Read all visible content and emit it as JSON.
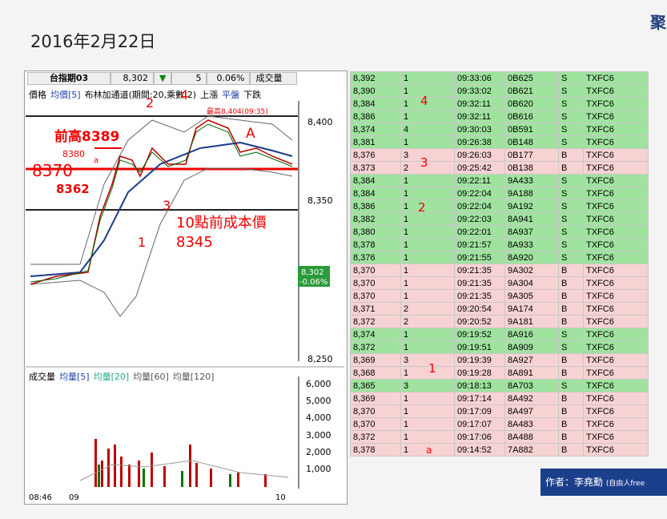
{
  "header": {
    "date": "2016年2月22日",
    "logo": "聚"
  },
  "quote_bar": [
    "台指期03",
    "8,302",
    "▼",
    "5",
    "0.06%",
    "成交量"
  ],
  "price_legend": [
    "價格",
    "均價[5]",
    "布林加通道(期間:20,乘數:2)",
    "上漲",
    "平盤",
    "下跌"
  ],
  "price_axis": [
    "8,400",
    "8,350",
    "8,250"
  ],
  "last_price": {
    "price": "8,302",
    "change": "-0.06%"
  },
  "annotations": {
    "prev_high": "前高8389",
    "level_8380": "8380",
    "mark_a": "a",
    "level_8370": "8370",
    "level_8362": "8362",
    "n1": "1",
    "n2": "2",
    "n3": "3",
    "n4": "4",
    "mark_A": "A",
    "high": "最高8,404(09:35)",
    "cost_label": "10點前成本價",
    "cost_value": "8345"
  },
  "volume_legend": [
    "成交量",
    "均量[5]",
    "均量[20]",
    "均量[60]",
    "均量[120]"
  ],
  "volume_axis": [
    "6,000",
    "5,000",
    "4,000",
    "3,000",
    "2,000",
    "1,000"
  ],
  "time_axis": [
    "08:46",
    "09",
    "10"
  ],
  "table": {
    "rows": [
      [
        "8,392",
        "1",
        "09:33:06",
        "0B625",
        "S",
        "TXFC6"
      ],
      [
        "8,390",
        "1",
        "09:33:02",
        "0B621",
        "S",
        "TXFC6"
      ],
      [
        "8,384",
        "1",
        "09:32:11",
        "0B620",
        "S",
        "TXFC6"
      ],
      [
        "8,386",
        "1",
        "09:32:11",
        "0B616",
        "S",
        "TXFC6"
      ],
      [
        "8,374",
        "4",
        "09:30:03",
        "0B591",
        "S",
        "TXFC6"
      ],
      [
        "8,381",
        "1",
        "09:26:38",
        "0B148",
        "S",
        "TXFC6"
      ],
      [
        "8,376",
        "3",
        "09:26:03",
        "0B177",
        "B",
        "TXFC6"
      ],
      [
        "8,373",
        "2",
        "09:25:42",
        "0B138",
        "B",
        "TXFC6"
      ],
      [
        "8,384",
        "1",
        "09:22:11",
        "9A433",
        "S",
        "TXFC6"
      ],
      [
        "8,384",
        "1",
        "09:22:04",
        "9A188",
        "S",
        "TXFC6"
      ],
      [
        "8,386",
        "1",
        "09:22:04",
        "9A192",
        "S",
        "TXFC6"
      ],
      [
        "8,382",
        "1",
        "09:22:03",
        "8A941",
        "S",
        "TXFC6"
      ],
      [
        "8,380",
        "1",
        "09:22:01",
        "8A937",
        "S",
        "TXFC6"
      ],
      [
        "8,378",
        "1",
        "09:21:57",
        "8A933",
        "S",
        "TXFC6"
      ],
      [
        "8,376",
        "1",
        "09:21:55",
        "8A920",
        "S",
        "TXFC6"
      ],
      [
        "8,370",
        "1",
        "09:21:35",
        "9A302",
        "B",
        "TXFC6"
      ],
      [
        "8,370",
        "1",
        "09:21:35",
        "9A304",
        "B",
        "TXFC6"
      ],
      [
        "8,370",
        "1",
        "09:21:35",
        "9A305",
        "B",
        "TXFC6"
      ],
      [
        "8,371",
        "2",
        "09:20:54",
        "9A174",
        "B",
        "TXFC6"
      ],
      [
        "8,372",
        "2",
        "09:20:52",
        "9A181",
        "B",
        "TXFC6"
      ],
      [
        "8,374",
        "1",
        "09:19:52",
        "8A916",
        "S",
        "TXFC6"
      ],
      [
        "8,372",
        "1",
        "09:19:51",
        "8A909",
        "S",
        "TXFC6"
      ],
      [
        "8,369",
        "3",
        "09:19:39",
        "8A927",
        "B",
        "TXFC6"
      ],
      [
        "8,368",
        "1",
        "09:19:28",
        "8A891",
        "B",
        "TXFC6"
      ],
      [
        "8,365",
        "3",
        "09:18:13",
        "8A703",
        "S",
        "TXFC6"
      ],
      [
        "8,369",
        "1",
        "09:17:14",
        "8A492",
        "B",
        "TXFC6"
      ],
      [
        "8,370",
        "1",
        "09:17:09",
        "8A497",
        "B",
        "TXFC6"
      ],
      [
        "8,370",
        "1",
        "09:17:07",
        "8A483",
        "B",
        "TXFC6"
      ],
      [
        "8,372",
        "1",
        "09:17:06",
        "8A488",
        "B",
        "TXFC6"
      ],
      [
        "8,378",
        "1",
        "09:14:52",
        "7A882",
        "B",
        "TXFC6"
      ]
    ]
  },
  "table_notes": [
    "4",
    "3",
    "2",
    "1",
    "a"
  ],
  "author": {
    "label": "作者：李堯勳",
    "note": "(自由人free"
  }
}
